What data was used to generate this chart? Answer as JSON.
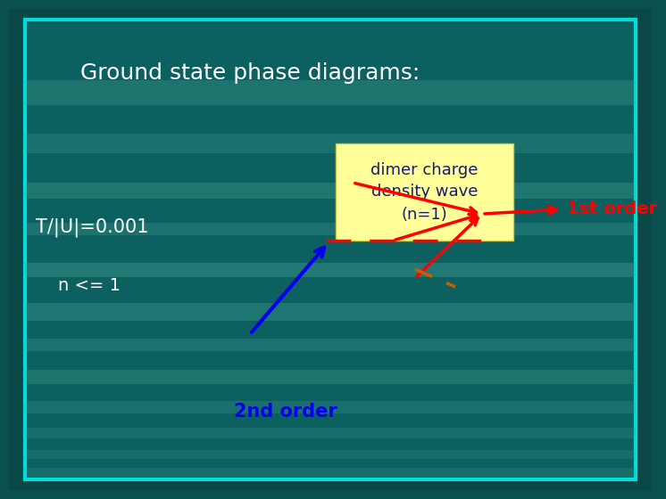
{
  "title": "Ground state phase diagrams:",
  "label_T": "T/|U|=0.001",
  "label_n": "n <= 1",
  "label_box": "dimer charge\ndensity wave\n(n=1)",
  "label_1st": "1st order",
  "label_2nd": "2nd order",
  "bg_dark": "#0a5050",
  "bg_mid": "#0d6060",
  "stripe_light": "#4aaa99",
  "border_color": "#00e8e8",
  "title_color": "#ffffff",
  "label_color": "#ffffff",
  "box_bg": "#ffff99",
  "box_text_color": "#1a1a6e",
  "red_color": "#ff0000",
  "blue_color": "#0000ee",
  "orange_color": "#c86000",
  "label_1st_color": "#ff0000",
  "label_2nd_color": "#0000ee"
}
